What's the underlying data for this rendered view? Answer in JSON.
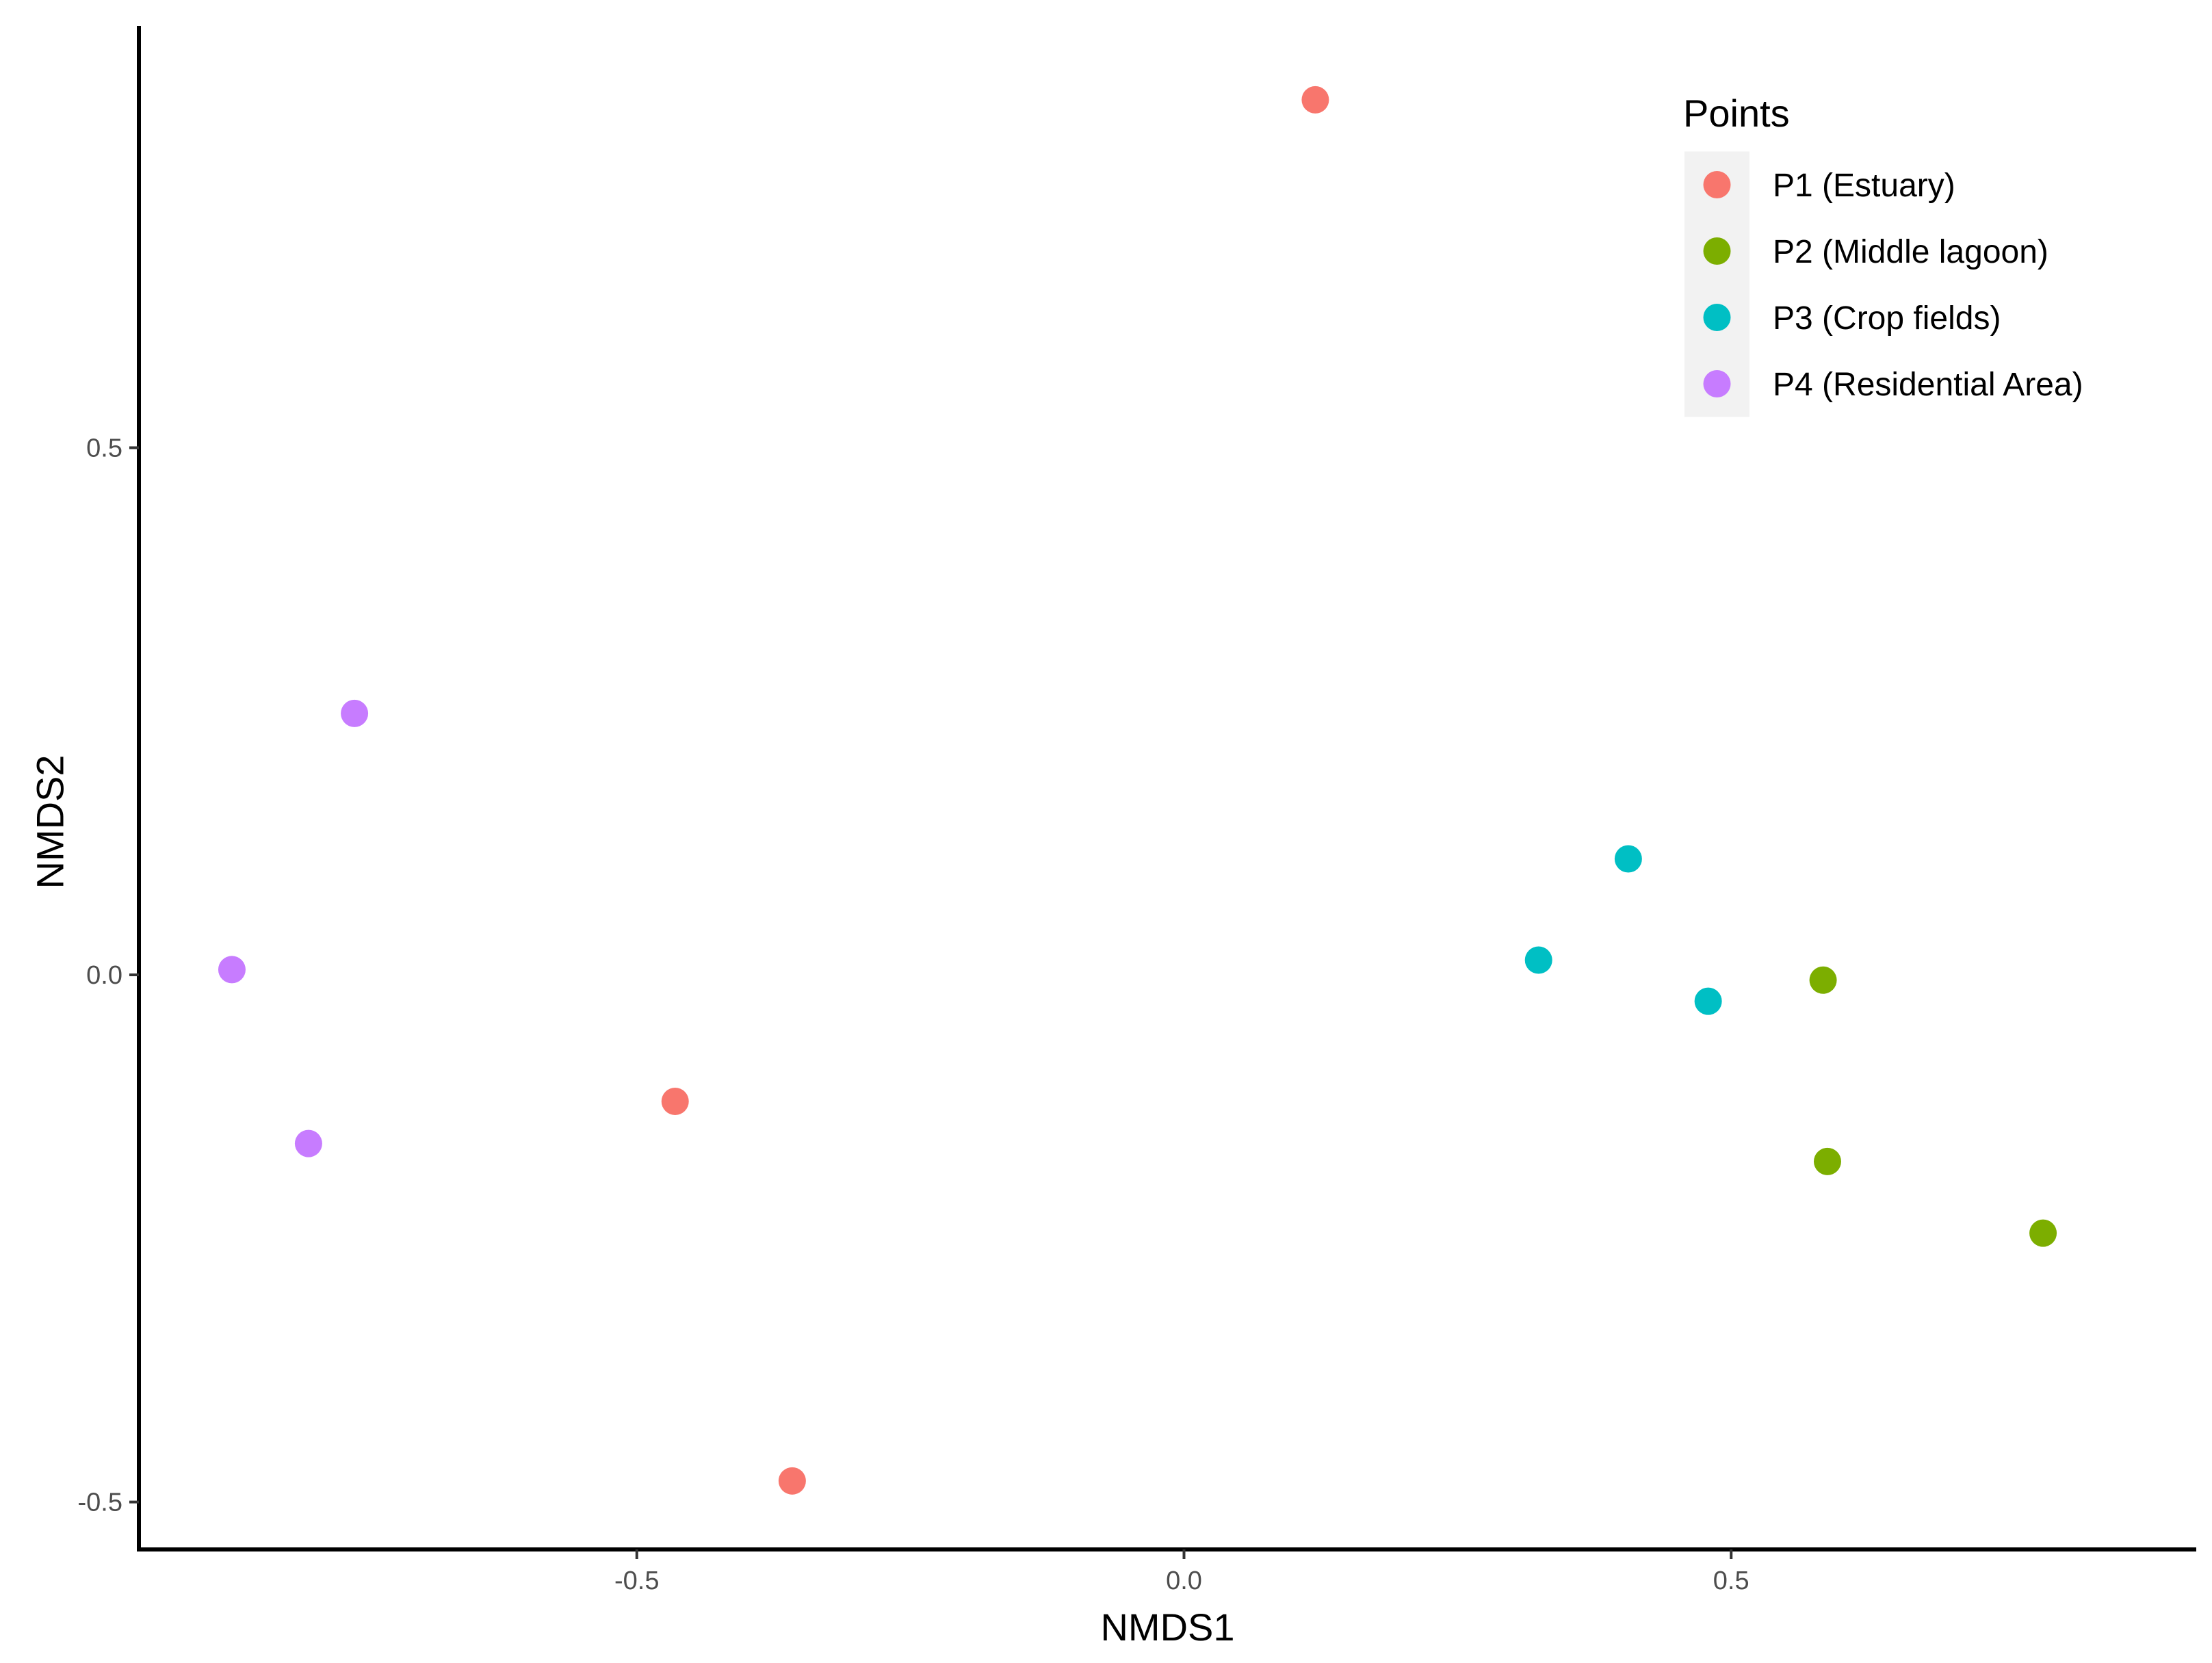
{
  "chart_data": {
    "type": "scatter",
    "title": "",
    "xlabel": "NMDS1",
    "ylabel": "NMDS2",
    "xlim": [
      -0.955,
      0.925
    ],
    "ylim": [
      -0.545,
      0.9
    ],
    "x_ticks": [
      {
        "value": -0.5,
        "label": "-0.5"
      },
      {
        "value": 0.0,
        "label": "0.0"
      },
      {
        "value": 0.5,
        "label": "0.5"
      }
    ],
    "y_ticks": [
      {
        "value": -0.5,
        "label": "-0.5"
      },
      {
        "value": 0.0,
        "label": "0.0"
      },
      {
        "value": 0.5,
        "label": "0.5"
      }
    ],
    "grid": false,
    "legend": {
      "title": "Points",
      "position": "top-right"
    },
    "series": [
      {
        "name": "P1 (Estuary)",
        "color": "#F8766D",
        "points": [
          {
            "x": 0.12,
            "y": 0.83
          },
          {
            "x": -0.465,
            "y": -0.12
          },
          {
            "x": -0.358,
            "y": -0.48
          }
        ]
      },
      {
        "name": "P2 (Middle lagoon)",
        "color": "#7CAE00",
        "points": [
          {
            "x": 0.584,
            "y": -0.005
          },
          {
            "x": 0.588,
            "y": -0.177
          },
          {
            "x": 0.785,
            "y": -0.245
          }
        ]
      },
      {
        "name": "P3 (Crop fields)",
        "color": "#00BFC4",
        "points": [
          {
            "x": 0.324,
            "y": 0.014
          },
          {
            "x": 0.406,
            "y": 0.11
          },
          {
            "x": 0.479,
            "y": -0.025
          }
        ]
      },
      {
        "name": "P4 (Residential Area)",
        "color": "#C77CFF",
        "points": [
          {
            "x": -0.87,
            "y": 0.005
          },
          {
            "x": -0.8,
            "y": -0.16
          },
          {
            "x": -0.758,
            "y": 0.248
          }
        ]
      }
    ]
  }
}
